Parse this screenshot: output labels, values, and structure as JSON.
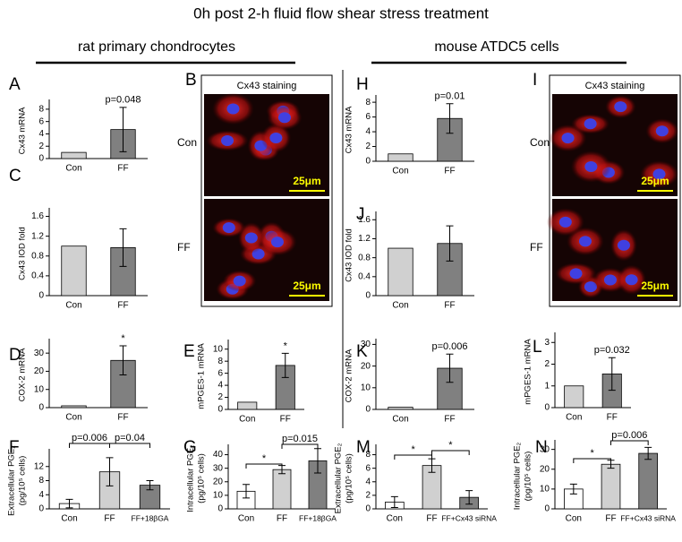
{
  "title": "0h post 2-h fluid flow shear stress treatment",
  "groups": [
    "rat primary chondrocytes",
    "mouse ATDC5 cells"
  ],
  "images": [
    {
      "label": "B",
      "title": "Cx43 staining",
      "rows": [
        "Con",
        "FF"
      ],
      "scale": "25μm"
    },
    {
      "label": "I",
      "title": "Cx43 staining",
      "rows": [
        "Con",
        "FF"
      ],
      "scale": "25μm"
    }
  ],
  "chart_data": [
    {
      "type": "bar",
      "label": "A",
      "ylabel": [
        "Cx43 mRNA"
      ],
      "categories": [
        "Con",
        "FF"
      ],
      "values": [
        1,
        4.7
      ],
      "errors": [
        0,
        3.6
      ],
      "colors": [
        "#d0d0d0",
        "#808080"
      ],
      "ylim": [
        0,
        9
      ],
      "yticks": [
        0,
        2,
        4,
        6,
        8
      ],
      "annotations": [
        "p=0.048"
      ]
    },
    {
      "type": "bar",
      "label": "C",
      "ylabel": [
        "Cx43 IOD fold"
      ],
      "categories": [
        "Con",
        "FF"
      ],
      "values": [
        1,
        0.97
      ],
      "errors": [
        0,
        0.38
      ],
      "colors": [
        "#d0d0d0",
        "#808080"
      ],
      "ylim": [
        0,
        1.7
      ],
      "yticks": [
        0,
        0.4,
        0.8,
        1.2,
        1.6
      ],
      "annotations": []
    },
    {
      "type": "bar",
      "label": "D",
      "ylabel": [
        "COX-2 mRNA"
      ],
      "categories": [
        "Con",
        "FF"
      ],
      "values": [
        1,
        26
      ],
      "errors": [
        0,
        8
      ],
      "colors": [
        "#d0d0d0",
        "#808080"
      ],
      "ylim": [
        0,
        36
      ],
      "yticks": [
        0,
        10,
        20,
        30
      ],
      "annotations": [
        "*"
      ]
    },
    {
      "type": "bar",
      "label": "E",
      "ylabel": [
        "mPGES-1 mRNA"
      ],
      "categories": [
        "Con",
        "FF"
      ],
      "values": [
        1.2,
        7.3
      ],
      "errors": [
        0,
        2
      ],
      "colors": [
        "#d0d0d0",
        "#808080"
      ],
      "ylim": [
        0,
        11
      ],
      "yticks": [
        0,
        2,
        4,
        6,
        8,
        10
      ],
      "annotations": [
        "*"
      ]
    },
    {
      "type": "bar",
      "label": "F",
      "ylabel": [
        "Extracellular PGE₂",
        "(pg/10⁵ cells)"
      ],
      "categories": [
        "Con",
        "FF",
        "FF+18βGA"
      ],
      "values": [
        1.5,
        10.5,
        6.7
      ],
      "errors": [
        1.2,
        4,
        1.3
      ],
      "colors": [
        "#ffffff",
        "#d0d0d0",
        "#808080"
      ],
      "ylim": [
        0,
        16
      ],
      "yticks": [
        0,
        4,
        8,
        12
      ],
      "annotations": [
        "p=0.006",
        "p=0.04"
      ]
    },
    {
      "type": "bar",
      "label": "G",
      "ylabel": [
        "Intracellular PGE₂",
        "(pg/10⁵ cells)"
      ],
      "categories": [
        "Con",
        "FF",
        "FF+18βGA"
      ],
      "values": [
        13,
        29,
        35.5
      ],
      "errors": [
        5,
        3,
        9
      ],
      "colors": [
        "#ffffff",
        "#d0d0d0",
        "#808080"
      ],
      "ylim": [
        0,
        45
      ],
      "yticks": [
        0,
        10,
        20,
        30,
        40
      ],
      "annotations": [
        "*",
        "p=0.015"
      ]
    },
    {
      "type": "bar",
      "label": "H",
      "ylabel": [
        "Cx43 mRNA"
      ],
      "categories": [
        "Con",
        "FF"
      ],
      "values": [
        1,
        5.8
      ],
      "errors": [
        0,
        2
      ],
      "colors": [
        "#d0d0d0",
        "#808080"
      ],
      "ylim": [
        0,
        8.5
      ],
      "yticks": [
        0,
        2,
        4,
        6,
        8
      ],
      "annotations": [
        "p=0.01"
      ]
    },
    {
      "type": "bar",
      "label": "J",
      "ylabel": [
        "Cx43 IOD fold"
      ],
      "categories": [
        "Con",
        "FF"
      ],
      "values": [
        1,
        1.1
      ],
      "errors": [
        0,
        0.37
      ],
      "colors": [
        "#d0d0d0",
        "#808080"
      ],
      "ylim": [
        0,
        1.7
      ],
      "yticks": [
        0,
        0.4,
        0.8,
        1.2,
        1.6
      ],
      "annotations": []
    },
    {
      "type": "bar",
      "label": "K",
      "ylabel": [
        "COX-2 mRNA"
      ],
      "categories": [
        "Con",
        "FF"
      ],
      "values": [
        1,
        19
      ],
      "errors": [
        0,
        6.5
      ],
      "colors": [
        "#d0d0d0",
        "#808080"
      ],
      "ylim": [
        0,
        31
      ],
      "yticks": [
        0,
        10,
        20,
        30
      ],
      "annotations": [
        "p=0.006"
      ]
    },
    {
      "type": "bar",
      "label": "L",
      "ylabel": [
        "mPGES-1 mRNA"
      ],
      "categories": [
        "Con",
        "FF"
      ],
      "values": [
        1,
        1.55
      ],
      "errors": [
        0,
        0.75
      ],
      "colors": [
        "#d0d0d0",
        "#808080"
      ],
      "ylim": [
        0,
        3.3
      ],
      "yticks": [
        0,
        1,
        2,
        3
      ],
      "annotations": [
        "p=0.032"
      ]
    },
    {
      "type": "bar",
      "label": "M",
      "ylabel": [
        "Extracellular PGE₂",
        "(pg/10⁵ cells)"
      ],
      "categories": [
        "Con",
        "FF",
        "FF+Cx43 siRNA"
      ],
      "values": [
        1,
        6.4,
        1.7
      ],
      "errors": [
        0.8,
        1,
        1
      ],
      "colors": [
        "#ffffff",
        "#d0d0d0",
        "#808080"
      ],
      "ylim": [
        0,
        9
      ],
      "yticks": [
        0,
        2,
        4,
        6,
        8
      ],
      "annotations": [
        "*",
        "*"
      ]
    },
    {
      "type": "bar",
      "label": "N",
      "ylabel": [
        "Intracellular PGE₂",
        "(pg/10⁵ cells)"
      ],
      "categories": [
        "Con",
        "FF",
        "FF+Cx43 siRNA"
      ],
      "values": [
        10,
        22.5,
        28
      ],
      "errors": [
        2.5,
        2,
        3
      ],
      "colors": [
        "#ffffff",
        "#d0d0d0",
        "#808080"
      ],
      "ylim": [
        0,
        33
      ],
      "yticks": [
        0,
        10,
        20,
        30
      ],
      "annotations": [
        "*",
        "p=0.006"
      ]
    }
  ]
}
